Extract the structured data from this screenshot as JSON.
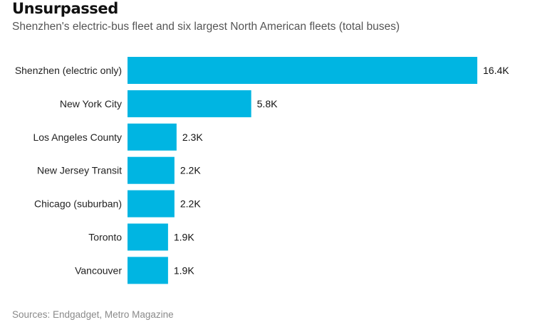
{
  "header": {
    "title": "Unsurpassed",
    "subtitle": "Shenzhen's electric-bus fleet and six largest North American fleets (total buses)"
  },
  "footer": {
    "source": "Sources: Endgadget, Metro Magazine"
  },
  "chart_data": {
    "type": "bar",
    "orientation": "horizontal",
    "title": "Unsurpassed",
    "subtitle": "Shenzhen's electric-bus fleet and six largest North American fleets (total buses)",
    "xlabel": "",
    "ylabel": "",
    "xlim": [
      0,
      16400
    ],
    "grid": false,
    "color": "#00b5e2",
    "categories": [
      "Shenzhen (electric only)",
      "New York City",
      "Los Angeles County",
      "New Jersey Transit",
      "Chicago (suburban)",
      "Toronto",
      "Vancouver"
    ],
    "values": [
      16400,
      5800,
      2300,
      2200,
      2200,
      1900,
      1900
    ],
    "value_labels": [
      "16.4K",
      "5.8K",
      "2.3K",
      "2.2K",
      "2.2K",
      "1.9K",
      "1.9K"
    ]
  }
}
